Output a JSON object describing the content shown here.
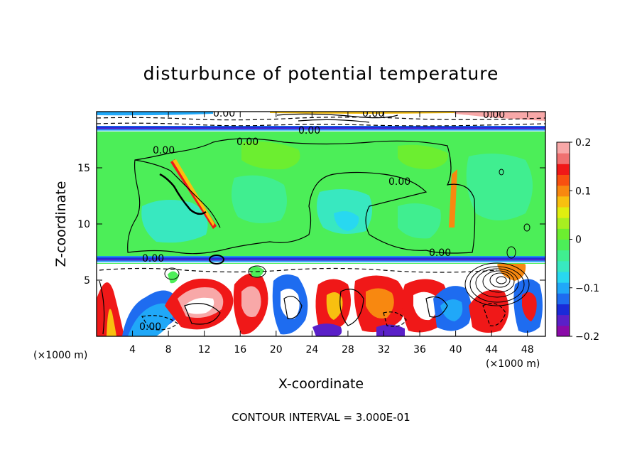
{
  "chart_data": {
    "type": "heatmap",
    "title": "disturbunce of potential temperature",
    "xlabel": "X-coordinate",
    "ylabel": "Z-coordinate",
    "x_unit_left": "(×1000 m)",
    "x_unit_right": "(×1000 m)",
    "xlim": [
      0,
      50
    ],
    "ylim": [
      0,
      20
    ],
    "x_ticks": [
      4,
      8,
      12,
      16,
      20,
      24,
      28,
      32,
      36,
      40,
      44,
      48
    ],
    "x_tick_labels": [
      "4",
      "8",
      "12",
      "16",
      "20",
      "24",
      "28",
      "32",
      "36",
      "40",
      "44",
      "48"
    ],
    "y_ticks": [
      5,
      10,
      15
    ],
    "y_tick_labels": [
      "5",
      "10",
      "15"
    ],
    "colorbar": {
      "min": -0.2,
      "max": 0.2,
      "ticks": [
        0.2,
        0.1,
        0,
        -0.1,
        -0.2
      ],
      "tick_labels": [
        "0.2",
        "0.1",
        "0",
        "−0.1",
        "−0.2"
      ],
      "colors": [
        "#8a0aa8",
        "#5a20c8",
        "#1a2ad8",
        "#1e6cf0",
        "#20a8f8",
        "#28d8f0",
        "#38e8c0",
        "#40ee90",
        "#4cee58",
        "#6cee30",
        "#a8ee20",
        "#e0ee10",
        "#f8c010",
        "#f88810",
        "#f85010",
        "#f01818",
        "#f07070",
        "#f8a8a8"
      ]
    },
    "contour_labels": [
      {
        "text": "0.00",
        "x": 7.5,
        "z": 7.0
      },
      {
        "text": "0.00",
        "x": 8.6,
        "z": 16.3
      },
      {
        "text": "0.00",
        "x": 17.5,
        "z": 17.3
      },
      {
        "text": "0.00",
        "x": 34.0,
        "z": 13.7
      },
      {
        "text": "0.00",
        "x": 38.8,
        "z": 7.5
      },
      {
        "text": "0.00",
        "x": 5.9,
        "z": 0.6
      },
      {
        "text": "0.00",
        "x": 14.5,
        "z": 19.1
      },
      {
        "text": "0.00",
        "x": 30.3,
        "z": 19.1
      },
      {
        "text": "0.00",
        "x": 45.0,
        "z": 19.0
      },
      {
        "text": "0.00",
        "x": 24.0,
        "z": 18.3
      }
    ],
    "annotation": "CONTOUR INTERVAL = 3.000E-01"
  }
}
